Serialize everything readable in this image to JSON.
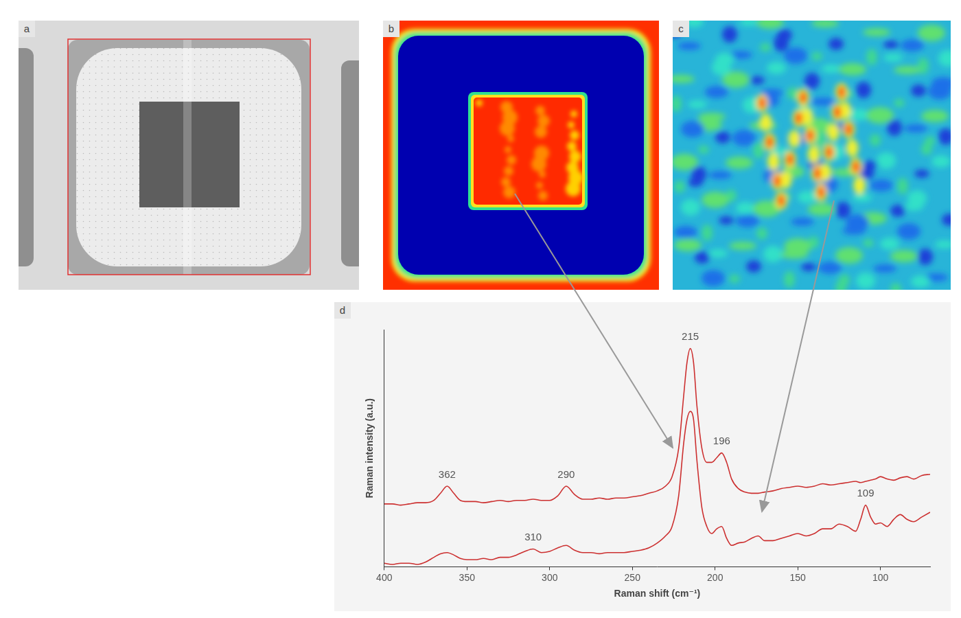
{
  "panel_labels": [
    "a",
    "b",
    "c",
    "d"
  ],
  "chart_data": {
    "type": "line",
    "x_label": "Raman shift (cm⁻¹)",
    "y_label": "Raman intensity (a.u.)",
    "xlim": [
      400,
      70
    ],
    "xticks": [
      400,
      350,
      300,
      250,
      200,
      150,
      100
    ],
    "ylim": [
      0,
      100
    ],
    "grid": false,
    "tick_labels": "x",
    "x": [
      400,
      395,
      390,
      385,
      380,
      375,
      370,
      366,
      362,
      358,
      354,
      350,
      345,
      340,
      335,
      330,
      325,
      320,
      315,
      310,
      305,
      300,
      295,
      290,
      285,
      280,
      275,
      270,
      265,
      260,
      255,
      250,
      245,
      240,
      235,
      230,
      226,
      222,
      219,
      217,
      215,
      213,
      211,
      208,
      205,
      202,
      199,
      196,
      193,
      190,
      186,
      182,
      178,
      174,
      170,
      165,
      160,
      155,
      150,
      145,
      140,
      135,
      130,
      125,
      120,
      115,
      112,
      109,
      106,
      103,
      100,
      96,
      92,
      88,
      84,
      80,
      75,
      70
    ],
    "series": [
      {
        "color": "#cc2f2f",
        "peaks": [
          362,
          290,
          215,
          196
        ],
        "values": [
          26.5,
          26.5,
          26,
          26.5,
          27,
          27,
          28,
          31,
          34,
          31,
          28,
          27.5,
          27.5,
          27,
          27.5,
          28,
          27.5,
          28,
          28,
          28.5,
          28,
          28,
          30,
          34,
          30.5,
          28.5,
          28.5,
          29,
          28.5,
          29,
          29,
          29.5,
          30,
          31,
          32,
          34,
          38,
          50,
          72,
          86,
          92,
          86,
          68,
          50,
          44,
          44,
          46,
          48,
          44,
          37,
          33,
          31.5,
          31,
          31,
          31.5,
          32,
          33,
          33.5,
          34,
          33.5,
          34,
          35,
          34.5,
          35,
          35.5,
          36,
          35.5,
          36,
          36.5,
          37,
          38,
          37,
          36.5,
          37.5,
          38,
          37,
          38.5,
          39
        ]
      },
      {
        "color": "#cc2f2f",
        "peaks": [
          310,
          109
        ],
        "values": [
          1.5,
          1,
          1.5,
          1.5,
          1,
          2,
          4,
          5.5,
          6,
          5,
          3.5,
          3,
          3,
          3.5,
          3,
          4,
          4,
          5,
          6.5,
          7.5,
          6,
          6.5,
          8,
          9,
          7,
          6,
          6,
          5.5,
          6,
          6,
          6,
          6.5,
          7,
          8,
          10,
          13,
          17,
          30,
          52,
          62,
          65.5,
          62,
          45,
          25,
          17,
          14,
          16,
          17,
          12,
          9,
          10,
          10.5,
          12,
          13,
          11,
          11,
          12,
          13,
          14,
          13,
          14,
          16,
          16,
          18,
          17,
          15,
          20,
          26,
          21,
          18,
          18.5,
          17,
          20,
          22,
          20,
          19,
          21,
          23
        ]
      }
    ]
  }
}
